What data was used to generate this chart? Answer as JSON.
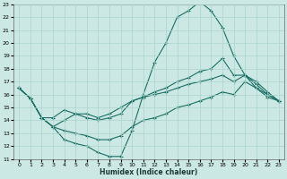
{
  "xlabel": "Humidex (Indice chaleur)",
  "bg_color": "#cce8e4",
  "line_color": "#1a6e64",
  "grid_color": "#aad4cc",
  "xlim": [
    -0.5,
    23.5
  ],
  "ylim": [
    11,
    23
  ],
  "xticks": [
    0,
    1,
    2,
    3,
    4,
    5,
    6,
    7,
    8,
    9,
    10,
    11,
    12,
    13,
    14,
    15,
    16,
    17,
    18,
    19,
    20,
    21,
    22,
    23
  ],
  "yticks": [
    11,
    12,
    13,
    14,
    15,
    16,
    17,
    18,
    19,
    20,
    21,
    22,
    23
  ],
  "line1_x": [
    0,
    1,
    2,
    3,
    4,
    5,
    6,
    7,
    8,
    9,
    10,
    11,
    12,
    13,
    14,
    15,
    16,
    17,
    18,
    19,
    20,
    21,
    22,
    23
  ],
  "line1_y": [
    16.5,
    15.7,
    14.2,
    13.5,
    12.5,
    12.2,
    12.0,
    11.5,
    11.2,
    11.2,
    13.2,
    16.0,
    18.5,
    20.0,
    22.0,
    22.5,
    23.2,
    22.5,
    21.2,
    19.0,
    17.5,
    16.5,
    16.0,
    15.5
  ],
  "line2_x": [
    0,
    1,
    2,
    3,
    4,
    5,
    6,
    7,
    8,
    9,
    10,
    11,
    12,
    13,
    14,
    15,
    16,
    17,
    18,
    19,
    20,
    21,
    22,
    23
  ],
  "line2_y": [
    16.5,
    15.7,
    14.2,
    14.2,
    14.8,
    14.5,
    14.2,
    14.0,
    14.2,
    14.5,
    15.5,
    15.8,
    16.2,
    16.5,
    17.0,
    17.3,
    17.8,
    18.0,
    18.8,
    17.5,
    17.5,
    16.8,
    16.0,
    15.5
  ],
  "line3_x": [
    0,
    1,
    2,
    3,
    4,
    5,
    6,
    7,
    8,
    9,
    10,
    11,
    12,
    13,
    14,
    15,
    16,
    17,
    18,
    19,
    20,
    21,
    22,
    23
  ],
  "line3_y": [
    16.5,
    15.7,
    14.2,
    13.5,
    14.0,
    14.5,
    14.5,
    14.2,
    14.5,
    15.0,
    15.5,
    15.8,
    16.0,
    16.2,
    16.5,
    16.8,
    17.0,
    17.2,
    17.5,
    17.0,
    17.5,
    17.0,
    16.2,
    15.5
  ],
  "line4_x": [
    0,
    1,
    2,
    3,
    4,
    5,
    6,
    7,
    8,
    9,
    10,
    11,
    12,
    13,
    14,
    15,
    16,
    17,
    18,
    19,
    20,
    21,
    22,
    23
  ],
  "line4_y": [
    16.5,
    15.7,
    14.2,
    13.5,
    13.2,
    13.0,
    12.8,
    12.5,
    12.5,
    12.8,
    13.5,
    14.0,
    14.2,
    14.5,
    15.0,
    15.2,
    15.5,
    15.8,
    16.2,
    16.0,
    17.0,
    16.5,
    15.8,
    15.5
  ]
}
